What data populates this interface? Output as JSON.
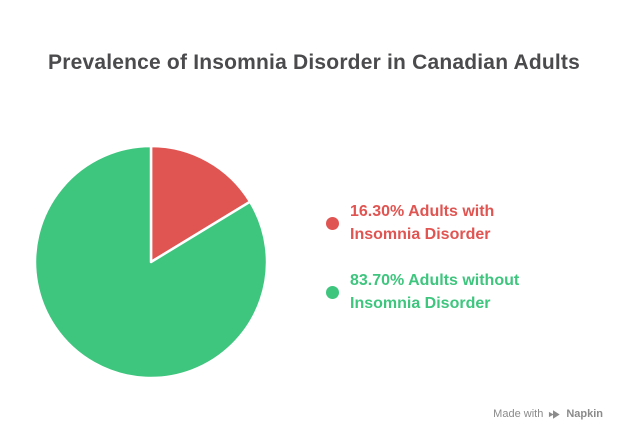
{
  "title": "Prevalence of Insomnia Disorder in Canadian Adults",
  "chart_data": {
    "type": "pie",
    "title": "Prevalence of Insomnia Disorder in Canadian Adults",
    "categories": [
      "Adults with Insomnia Disorder",
      "Adults without Insomnia Disorder"
    ],
    "values": [
      16.3,
      83.7
    ],
    "colors": [
      "#e05552",
      "#3ec57e"
    ],
    "start_angle_deg": 0,
    "direction": "clockwise",
    "slice_stroke": "#ffffff",
    "legend_position": "right",
    "legend": [
      {
        "swatch_color": "#e05552",
        "text_color": "#e05552",
        "line1": "16.30% Adults with",
        "line2": "Insomnia Disorder"
      },
      {
        "swatch_color": "#3ec57e",
        "text_color": "#3ec57e",
        "line1": "83.70% Adults without",
        "line2": "Insomnia Disorder"
      }
    ]
  },
  "watermark": {
    "prefix": "Made with",
    "brand": "Napkin"
  },
  "colors": {
    "title_text": "#4b4b4d",
    "watermark_text": "#8b8b8b",
    "background": "#ffffff"
  }
}
